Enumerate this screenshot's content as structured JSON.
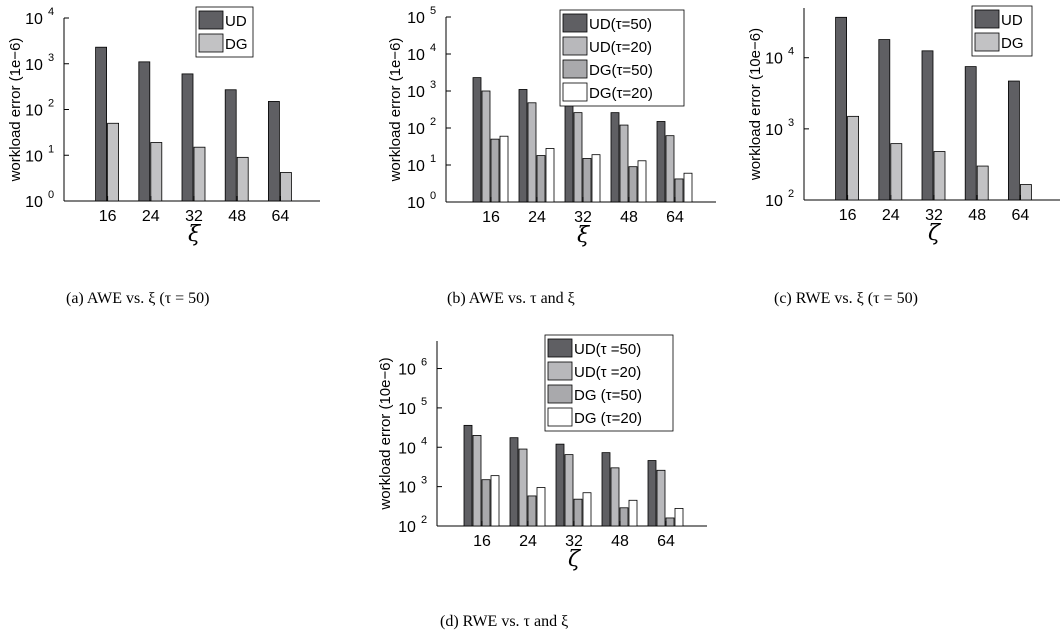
{
  "captions": {
    "a": "(a)  AWE vs. ξ (τ = 50)",
    "b": "(b)  AWE vs. τ and ξ",
    "c": "(c)  RWE vs. ξ (τ = 50)",
    "d": "(d)  RWE vs. τ and ξ"
  },
  "colors": {
    "UD_tau50": "#5f5f63",
    "UD_tau20": "#b8b8bb",
    "DG_tau50": "#a9a9ac",
    "DG_tau20": "#ffffff",
    "UD": "#5f5f63",
    "DG": "#c2c2c4"
  },
  "chart_data": [
    {
      "id": "a",
      "type": "bar",
      "log_scale": true,
      "ylabel": "workload error (1e−6)",
      "xlabel": "ξ",
      "ylim": [
        1,
        10000
      ],
      "yticks": [
        0,
        1,
        2,
        3,
        4
      ],
      "categories": [
        "16",
        "24",
        "32",
        "48",
        "64"
      ],
      "legend_position": "top-right",
      "series": [
        {
          "name": "UD",
          "color": "#5f5f63",
          "values": [
            2300,
            1100,
            600,
            270,
            150
          ]
        },
        {
          "name": "DG",
          "color": "#c2c2c4",
          "values": [
            50,
            19,
            15,
            9,
            4.2
          ]
        }
      ]
    },
    {
      "id": "b",
      "type": "bar",
      "log_scale": true,
      "ylabel": "workload error (1e−6)",
      "xlabel": "ξ",
      "ylim": [
        1,
        100000
      ],
      "yticks": [
        0,
        1,
        2,
        3,
        4,
        5
      ],
      "categories": [
        "16",
        "24",
        "32",
        "48",
        "64"
      ],
      "legend_position": "top-right",
      "series": [
        {
          "name": "UD(τ=50)",
          "color": "#5f5f63",
          "values": [
            2300,
            1100,
            600,
            260,
            150
          ]
        },
        {
          "name": "UD(τ=20)",
          "color": "#b8b8bb",
          "values": [
            1000,
            480,
            260,
            120,
            62
          ]
        },
        {
          "name": "DG(τ=50)",
          "color": "#a9a9ac",
          "values": [
            50,
            18,
            15,
            9,
            4.2
          ]
        },
        {
          "name": "DG(τ=20)",
          "color": "#ffffff",
          "values": [
            60,
            28,
            19,
            13,
            6
          ]
        }
      ]
    },
    {
      "id": "c",
      "type": "bar",
      "log_scale": true,
      "ylabel": "workload error (10e−6)",
      "xlabel": "ζ",
      "ylim": [
        100,
        50000
      ],
      "yticks": [
        2,
        3,
        4
      ],
      "categories": [
        "16",
        "24",
        "32",
        "48",
        "64"
      ],
      "legend_position": "top-right",
      "series": [
        {
          "name": "UD",
          "color": "#5f5f63",
          "values": [
            37000,
            18000,
            12500,
            7500,
            4700
          ]
        },
        {
          "name": "DG",
          "color": "#c2c2c4",
          "values": [
            1500,
            620,
            480,
            300,
            165
          ]
        }
      ]
    },
    {
      "id": "d",
      "type": "bar",
      "log_scale": true,
      "ylabel": "workload error (10e−6)",
      "xlabel": "ζ",
      "ylim": [
        100,
        5000000
      ],
      "yticks": [
        2,
        3,
        4,
        5,
        6
      ],
      "categories": [
        "16",
        "24",
        "32",
        "48",
        "64"
      ],
      "legend_position": "top-right",
      "series": [
        {
          "name": "UD(τ =50)",
          "color": "#5f5f63",
          "values": [
            36000,
            17500,
            12000,
            7300,
            4600
          ]
        },
        {
          "name": "UD(τ =20)",
          "color": "#b8b8bb",
          "values": [
            20000,
            9000,
            6500,
            3000,
            2600
          ]
        },
        {
          "name": "DG (τ=50)",
          "color": "#a9a9ac",
          "values": [
            1500,
            580,
            480,
            290,
            160
          ]
        },
        {
          "name": "DG (τ=20)",
          "color": "#ffffff",
          "values": [
            1900,
            950,
            700,
            450,
            280
          ]
        }
      ]
    }
  ]
}
